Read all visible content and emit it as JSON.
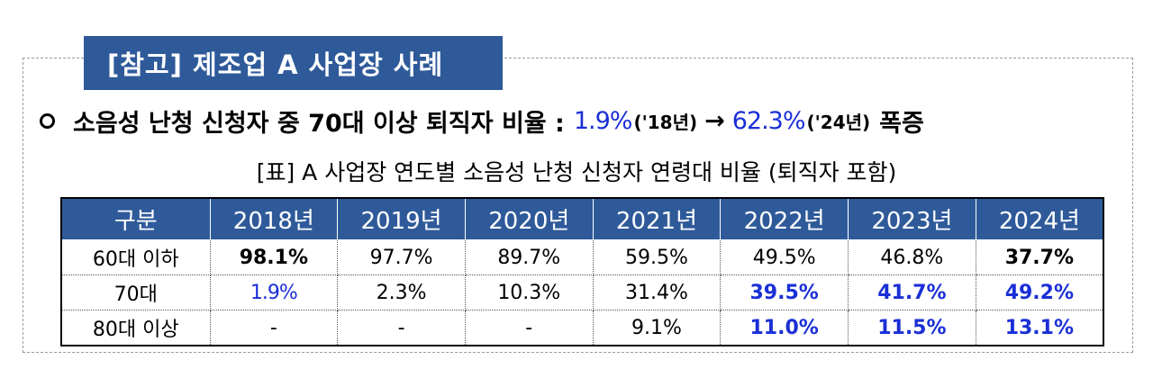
{
  "title": "[참고] 제조업 A 사업장 사례",
  "headline": {
    "text": "소음성 난청 신청자 중 70대 이상 퇴직자 비율 :",
    "value_from": "1.9%",
    "year_from": "('18년)",
    "arrow": "→",
    "value_to": "62.3%",
    "year_to": "('24년)",
    "suffix": "폭증"
  },
  "table_caption": "[표] A 사업장 연도별 소음성 난청 신청자 연령대 비율 (퇴직자 포함)",
  "table": {
    "headers": [
      "구분",
      "2018년",
      "2019년",
      "2020년",
      "2021년",
      "2022년",
      "2023년",
      "2024년"
    ],
    "rows": [
      [
        "60대 이하",
        "98.1%",
        "97.7%",
        "89.7%",
        "59.5%",
        "49.5%",
        "46.8%",
        "37.7%"
      ],
      [
        "70대",
        "1.9%",
        "2.3%",
        "10.3%",
        "31.4%",
        "39.5%",
        "41.7%",
        "49.2%"
      ],
      [
        "80대 이상",
        "-",
        "-",
        "-",
        "9.1%",
        "11.0%",
        "11.5%",
        "13.1%"
      ]
    ]
  },
  "colors": {
    "header_bg": "#2f5a9a",
    "highlight": "#1a2fd6"
  }
}
